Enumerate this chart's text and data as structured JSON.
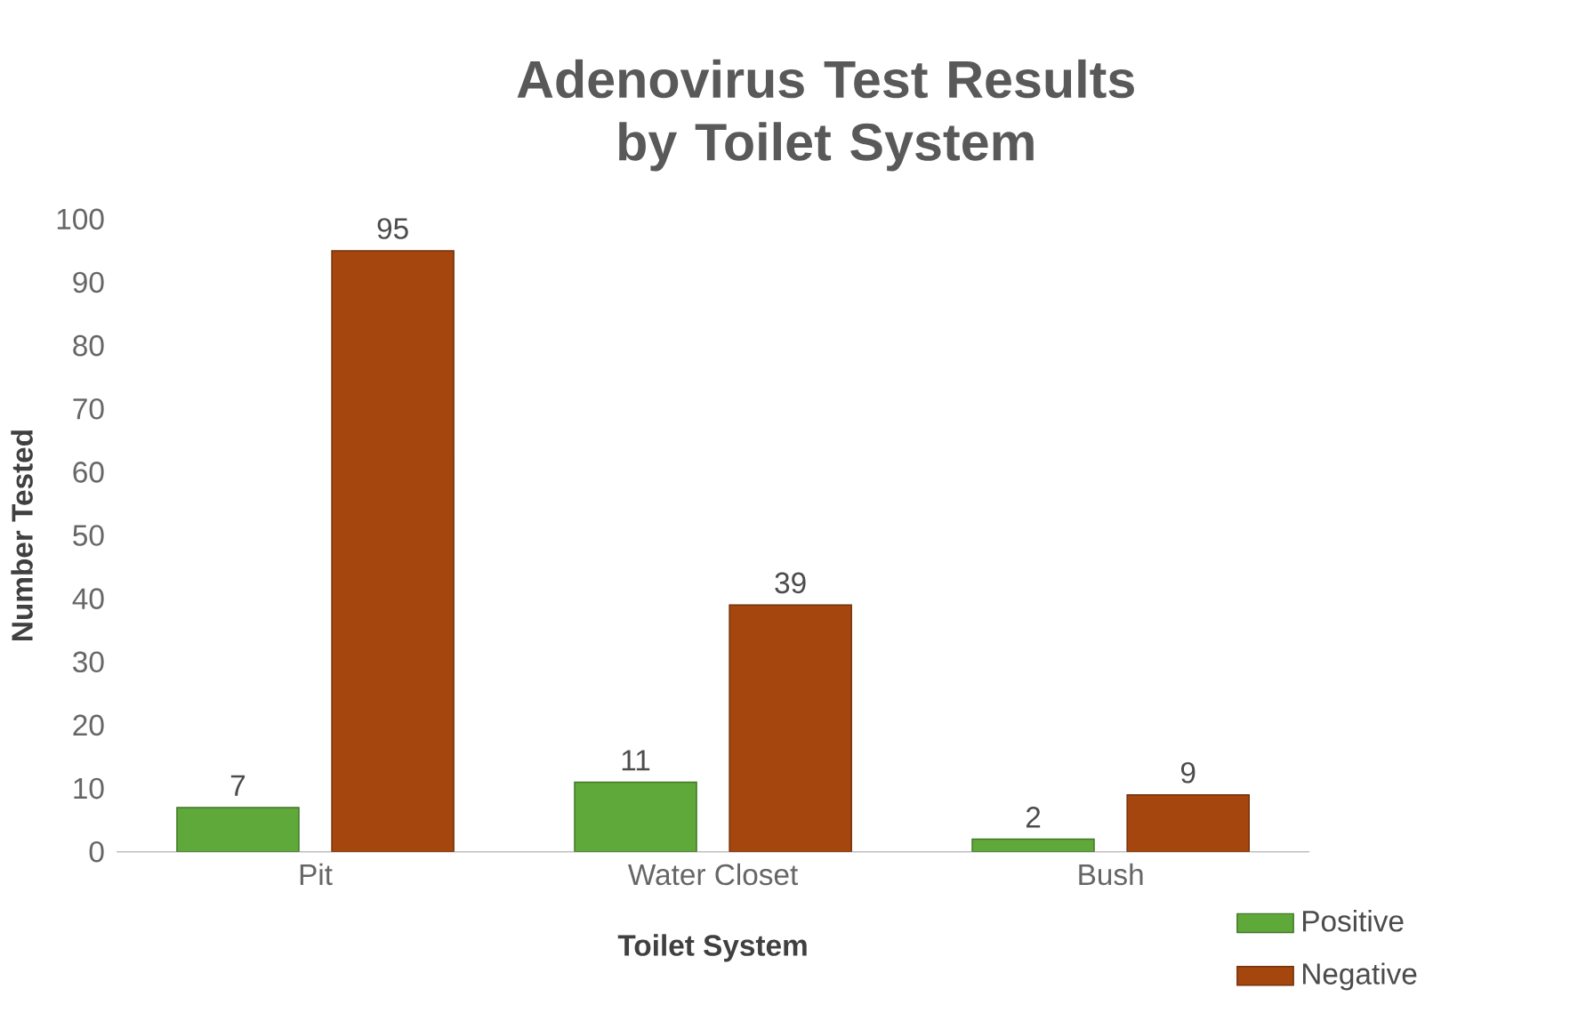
{
  "chart_data": {
    "type": "bar",
    "title": "Adenovirus Test Results by Toilet System",
    "xlabel": "Toilet System",
    "ylabel": "Number Tested",
    "categories": [
      "Pit",
      "Water Closet",
      "Bush"
    ],
    "series": [
      {
        "name": "Positive",
        "color": "#5fa83a",
        "values": [
          7,
          11,
          2
        ]
      },
      {
        "name": "Negative",
        "color": "#a5460f",
        "values": [
          95,
          39,
          9
        ]
      }
    ],
    "ylim": [
      0,
      100
    ],
    "yticks": [
      0,
      10,
      20,
      30,
      40,
      50,
      60,
      70,
      80,
      90,
      100
    ],
    "data_labels": true,
    "legend": "bottom right",
    "grid": false
  }
}
